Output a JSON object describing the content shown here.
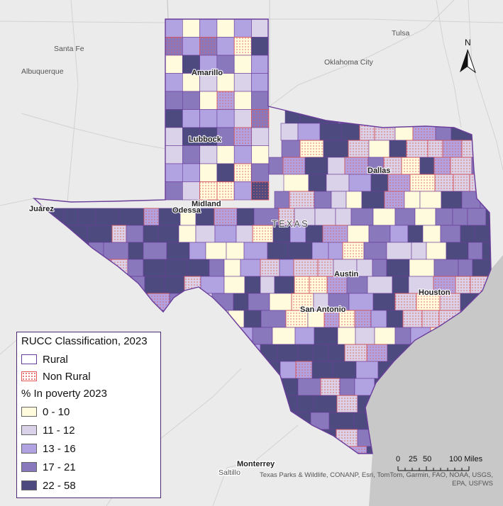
{
  "legend": {
    "title": "RUCC Classification, 2023",
    "rural_label": "Rural",
    "nonrural_label": "Non Rural",
    "poverty_title": "% In poverty 2023",
    "classes": [
      {
        "label": "0 - 10",
        "color": "#fffbdc"
      },
      {
        "label": "11 - 12",
        "color": "#d9d2e8"
      },
      {
        "label": "13 - 16",
        "color": "#b1a2e1"
      },
      {
        "label": "17 - 21",
        "color": "#8a78bd"
      },
      {
        "label": "22 - 58",
        "color": "#4d4a80"
      }
    ]
  },
  "map": {
    "state_label": "TEXAS",
    "colors": {
      "rural_outline": "#6a3d9a",
      "nonrural_outline": "#e05a5a",
      "water": "#c8c8c8",
      "land": "#ebebeb"
    },
    "cities_outside": [
      "Santa Fe",
      "Albuquerque",
      "Oklahoma City",
      "Tulsa",
      "Saltillo"
    ],
    "cities_bold": [
      "Amarillo",
      "Lubbock",
      "Midland",
      "Odessa",
      "Juárez",
      "Dallas",
      "Austin",
      "San Antonio",
      "Houston",
      "Monterrey"
    ]
  },
  "north_arrow": {
    "label": "N"
  },
  "scale_bar": {
    "labels": [
      "0",
      "25",
      "50",
      "100 Miles"
    ]
  },
  "attribution": "Texas Parks & Wildlife, CONANP, Esri, TomTom, Garmin, FAO, NOAA, USGS, EPA, USFWS"
}
